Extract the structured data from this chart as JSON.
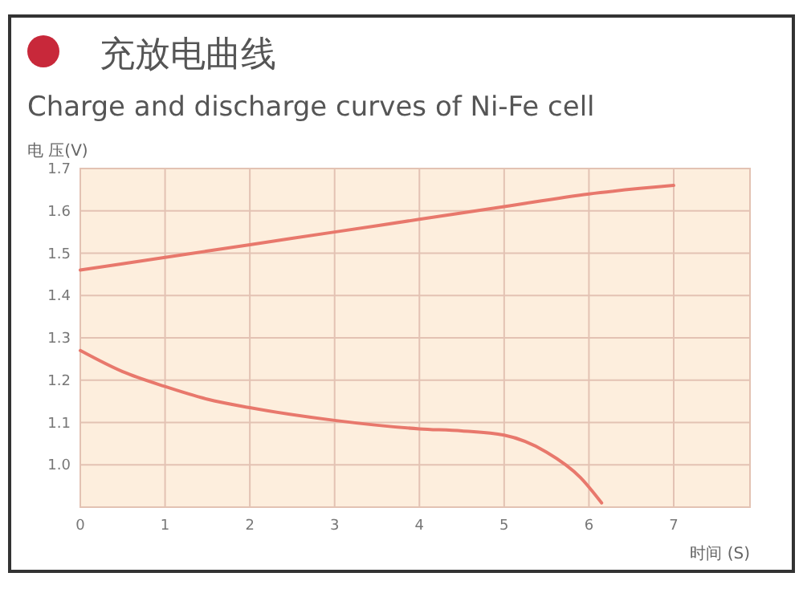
{
  "chart_data": {
    "type": "line",
    "title": "充放电曲线",
    "subtitle": "Charge and discharge curves of Ni-Fe cell",
    "xlabel": "时间 (S)",
    "ylabel": "电 压(V)",
    "xlim": [
      0,
      7.9
    ],
    "xticks": [
      0,
      1,
      2,
      3,
      4,
      5,
      6,
      7
    ],
    "ylim": [
      0.9,
      1.7
    ],
    "yticks": [
      {
        "value": 1,
        "label": "1.0"
      },
      1.1,
      1.2,
      1.3,
      1.4,
      1.5,
      1.6,
      1.7
    ],
    "grid": true,
    "series": [
      {
        "color": "#e8786c",
        "x": [
          0,
          1,
          2,
          3,
          4,
          5,
          6,
          7
        ],
        "values": [
          1.46,
          1.49,
          1.52,
          1.55,
          1.58,
          1.61,
          1.64,
          1.66
        ]
      },
      {
        "color": "#e8786c",
        "x": [
          0,
          0.5,
          1,
          1.5,
          2,
          3,
          4,
          4.5,
          5,
          5.5,
          5.9,
          6.15
        ],
        "values": [
          1.27,
          1.22,
          1.185,
          1.155,
          1.135,
          1.105,
          1.085,
          1.08,
          1.07,
          1.03,
          0.97,
          0.91
        ]
      }
    ]
  }
}
